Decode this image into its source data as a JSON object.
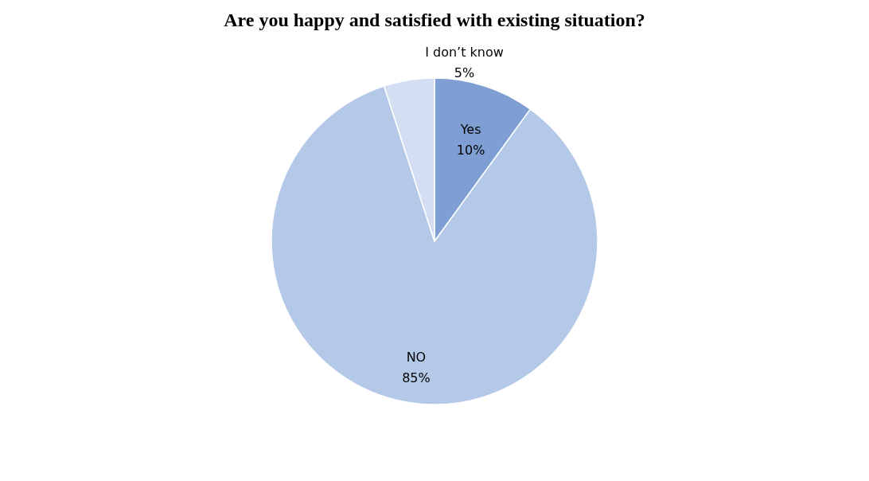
{
  "chart_data": {
    "type": "pie",
    "title": "Are you happy and satisfied with existing situation?",
    "categories": [
      "Yes",
      "NO",
      "I don’t know"
    ],
    "values": [
      10,
      85,
      5
    ],
    "value_labels": [
      "10%",
      "85%",
      "5%"
    ],
    "colors": [
      "#7f9fd4",
      "#b4c8e8",
      "#d3def2"
    ],
    "legend": false
  }
}
